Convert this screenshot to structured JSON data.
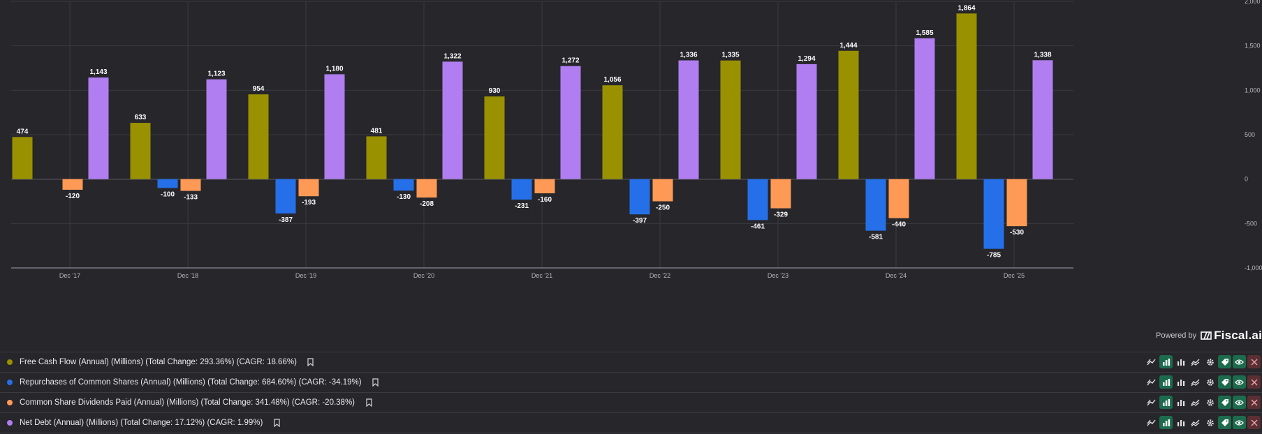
{
  "chart_data": {
    "type": "bar",
    "categories": [
      "Dec '17",
      "Dec '18",
      "Dec '19",
      "Dec '20",
      "Dec '21",
      "Dec '22",
      "Dec '23",
      "Dec '24",
      "Dec '25"
    ],
    "series": [
      {
        "name": "Free Cash Flow",
        "color": "#999100",
        "values": [
          474,
          633,
          954,
          481,
          930,
          1056,
          1335,
          1444,
          1864
        ],
        "labels": [
          "474",
          "633",
          "954",
          "481",
          "930",
          "1,056",
          "1,335",
          "1,444",
          "1,864"
        ]
      },
      {
        "name": "Repurchases of Common Shares",
        "color": "#2570e8",
        "values": [
          0,
          -100,
          -387,
          -130,
          -231,
          -397,
          -461,
          -581,
          -785
        ],
        "labels": [
          "",
          "-100",
          "-387",
          "-130",
          "-231",
          "-397",
          "-461",
          "-581",
          "-785"
        ]
      },
      {
        "name": "Common Share Dividends Paid",
        "color": "#fe9a56",
        "values": [
          -120,
          -133,
          -193,
          -208,
          -160,
          -250,
          -329,
          -440,
          -530
        ],
        "labels": [
          "-120",
          "-133",
          "-193",
          "-208",
          "-160",
          "-250",
          "-329",
          "-440",
          "-530"
        ]
      },
      {
        "name": "Net Debt",
        "color": "#b07ef0",
        "values": [
          1143,
          1123,
          1180,
          1322,
          1272,
          1336,
          1294,
          1585,
          1338
        ],
        "labels": [
          "1,143",
          "1,123",
          "1,180",
          "1,322",
          "1,272",
          "1,336",
          "1,294",
          "1,585",
          "1,338"
        ]
      }
    ],
    "y_ticks": [
      {
        "value": 2000,
        "label": "2,000"
      },
      {
        "value": 1500,
        "label": "1,500"
      },
      {
        "value": 1000,
        "label": "1,000"
      },
      {
        "value": 500,
        "label": "500"
      },
      {
        "value": 0,
        "label": "0"
      },
      {
        "value": -500,
        "label": "-500"
      },
      {
        "value": -1000,
        "label": "-1,000"
      }
    ],
    "ylim": [
      -1000,
      2000
    ],
    "grid": true,
    "y_axis_position": "right",
    "title": "",
    "xlabel": "",
    "ylabel": ""
  },
  "branding": {
    "powered_by": "Powered by",
    "brand": "Fiscal.ai"
  },
  "legend": [
    {
      "color": "#999100",
      "text": "Free Cash Flow (Annual) (Millions) (Total Change: 293.36%) (CAGR: 18.66%)"
    },
    {
      "color": "#2570e8",
      "text": "Repurchases of Common Shares (Annual) (Millions) (Total Change: 684.60%) (CAGR: -34.19%)"
    },
    {
      "color": "#fe9a56",
      "text": "Common Share Dividends Paid (Annual) (Millions) (Total Change: 341.48%) (CAGR: -20.38%)"
    },
    {
      "color": "#b07ef0",
      "text": "Net Debt (Annual) (Millions) (Total Change: 17.12%) (CAGR: 1.99%)"
    }
  ],
  "row_tools": [
    "trend-icon",
    "bar-chart-filled-icon",
    "bar-chart-icon",
    "line-chart-icon",
    "gear-icon",
    "tag-icon",
    "eye-icon",
    "close-icon"
  ]
}
